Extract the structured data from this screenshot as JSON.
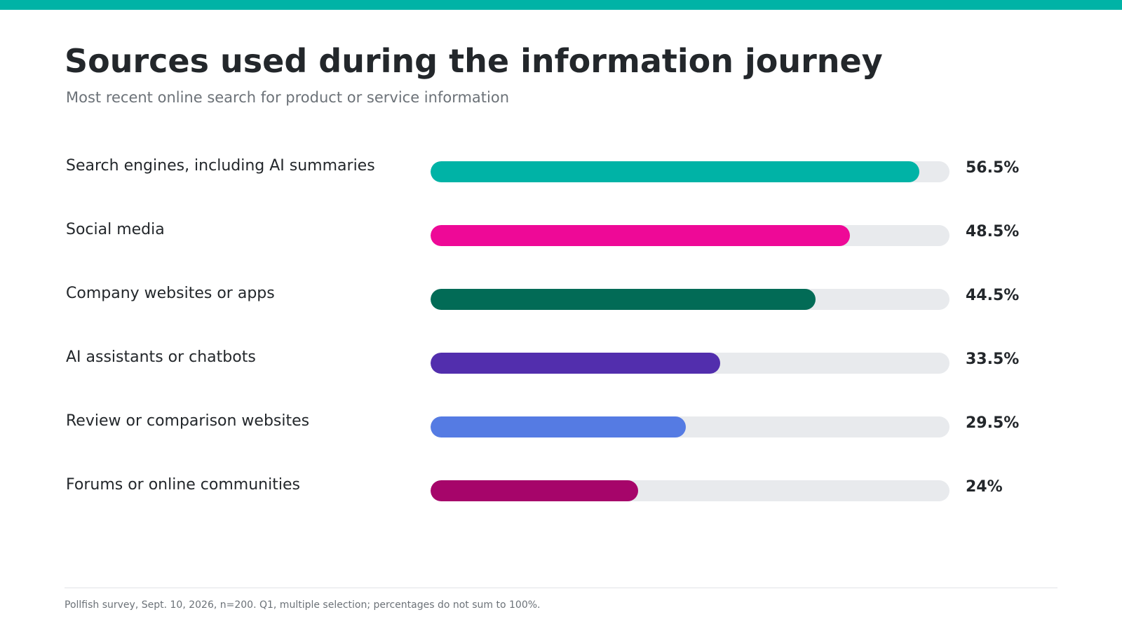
{
  "colors": {
    "accent": "#00b3a6"
  },
  "chart_data": {
    "type": "bar",
    "orientation": "horizontal",
    "title": "Sources used during the information journey",
    "subtitle": "Most recent online search for product or service information",
    "xlim": [
      0,
      60
    ],
    "categories": [
      "Search engines, including AI summaries",
      "Social media",
      "Company websites or apps",
      "AI assistants or chatbots",
      "Review or comparison websites",
      "Forums or online communities"
    ],
    "values": [
      56.5,
      48.5,
      44.5,
      33.5,
      29.5,
      24
    ],
    "value_labels": [
      "56.5%",
      "48.5%",
      "44.5%",
      "33.5%",
      "29.5%",
      "24%"
    ],
    "bar_colors": [
      "#00b3a6",
      "#ee0997",
      "#026b56",
      "#522ead",
      "#557be3",
      "#a6056a"
    ],
    "footnote": "Pollfish survey, Sept. 10, 2026, n=200. Q1, multiple selection; percentages do not sum to 100%."
  }
}
